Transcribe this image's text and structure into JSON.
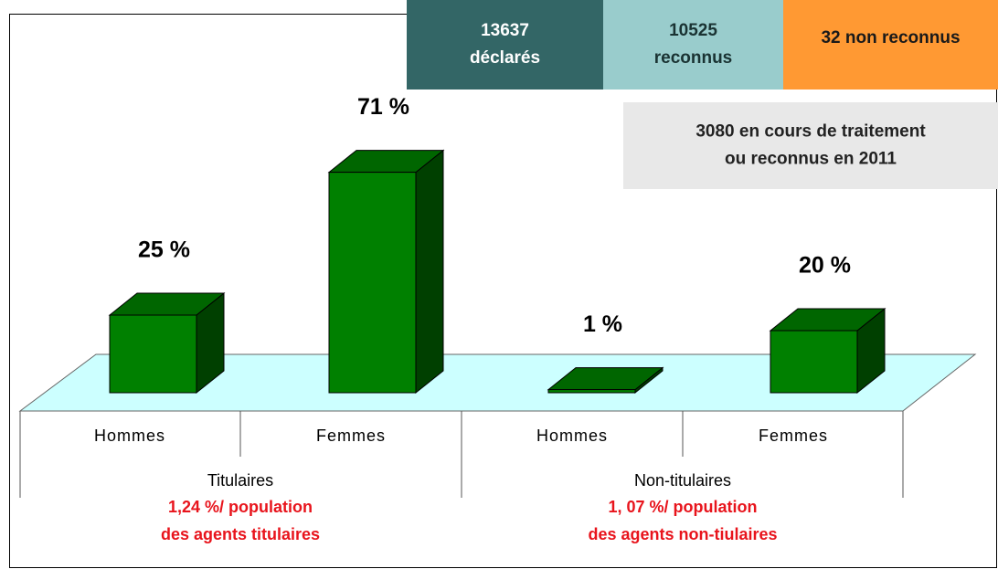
{
  "chart_data": {
    "type": "bar",
    "categories": [
      "Hommes",
      "Femmes",
      "Hommes",
      "Femmes"
    ],
    "values": [
      25,
      71,
      1,
      20
    ],
    "value_labels": [
      "25 %",
      "71 %",
      "1 %",
      "20 %"
    ],
    "color": "#008000",
    "groups": [
      {
        "name": "Titulaires",
        "note": [
          "1,24 %/ population",
          "des agents titulaires"
        ]
      },
      {
        "name": "Non-titulaires",
        "note": [
          "1, 07 %/ population",
          "des agents non-tiulaires"
        ]
      }
    ],
    "boxes": [
      {
        "lines": [
          "13637",
          "déclarés"
        ],
        "color": "#336666"
      },
      {
        "lines": [
          "10525",
          "reconnus"
        ],
        "color": "#99cccc"
      },
      {
        "lines": [
          "32 non reconnus"
        ],
        "color": "#ff9933"
      },
      {
        "lines": [
          "3080 en cours de traitement",
          "ou reconnus en 2011"
        ],
        "color": "#e8e8e8"
      }
    ]
  }
}
